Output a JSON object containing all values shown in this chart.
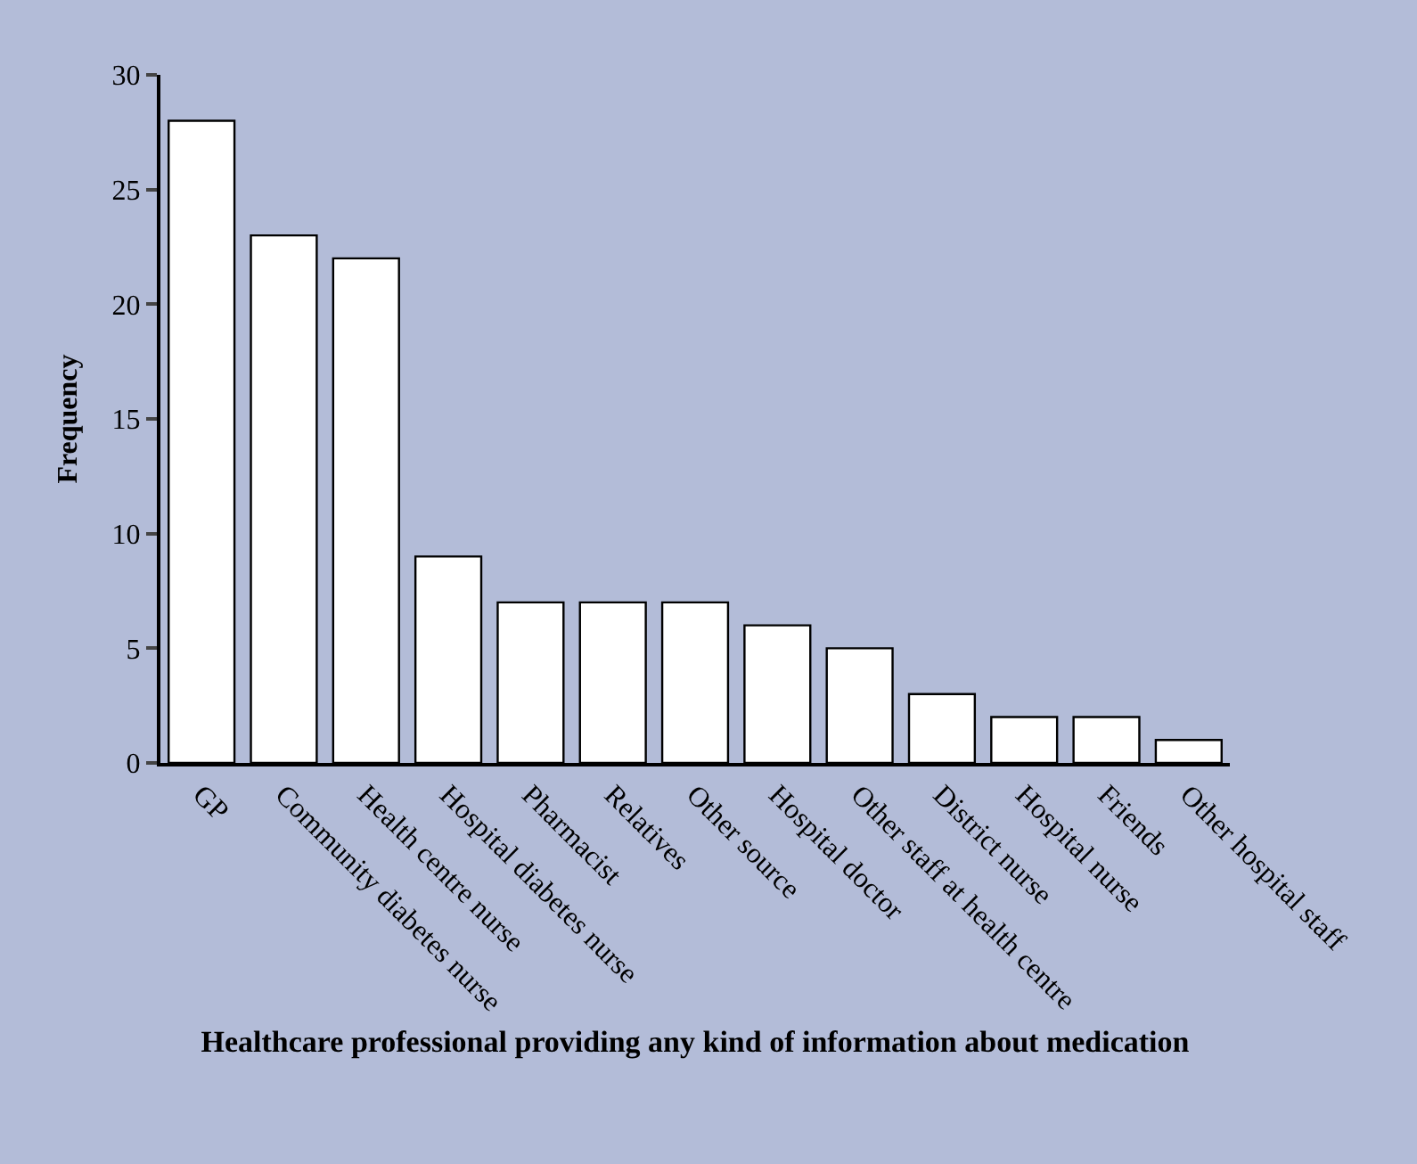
{
  "chart_data": {
    "type": "bar",
    "xlabel": "Healthcare professional providing any kind of information about medication",
    "ylabel": "Frequency",
    "categories": [
      "GP",
      "Community diabetes nurse",
      "Health centre nurse",
      "Hospital diabetes nurse",
      "Pharmacist",
      "Relatives",
      "Other source",
      "Hospital doctor",
      "Other staff at health centre",
      "District nurse",
      "Hospital nurse",
      "Friends",
      "Other hospital staff"
    ],
    "values": [
      28,
      23,
      22,
      9,
      7,
      7,
      7,
      6,
      5,
      3,
      2,
      2,
      1
    ],
    "color": "#ffffff",
    "ylim": [
      0,
      30
    ],
    "yticks": [
      0,
      5,
      10,
      15,
      20,
      25,
      30
    ],
    "grid": false
  }
}
